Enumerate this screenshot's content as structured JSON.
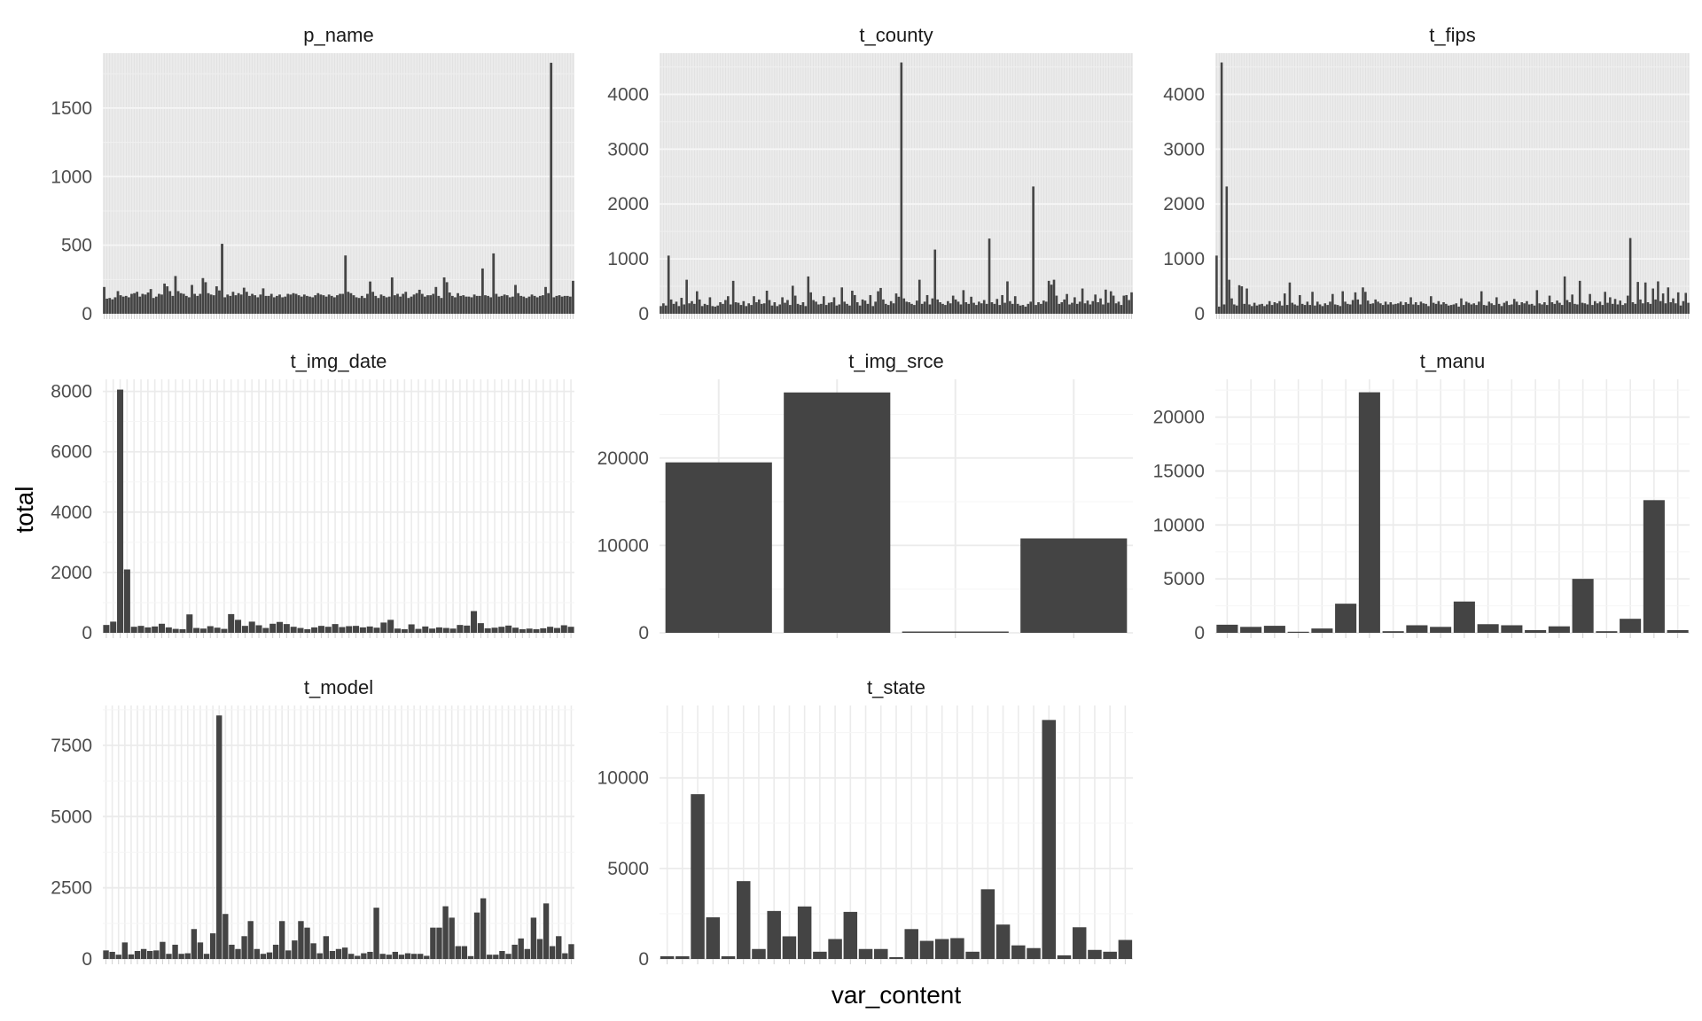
{
  "chart_data": {
    "type": "bar",
    "layout": "faceted",
    "xlabel": "var_content",
    "ylabel": "total",
    "colors": {
      "bar": "#444444",
      "panel": "#ebebeb",
      "grid_major": "#ebebeb",
      "grid_minor": "#f5f5f5"
    },
    "panels": [
      {
        "title": "p_name",
        "ylim": [
          0,
          1900
        ],
        "yticks": [
          0,
          500,
          1000,
          1500
        ],
        "grid": "dense",
        "values": [
          195,
          110,
          115,
          105,
          120,
          165,
          135,
          125,
          130,
          120,
          145,
          150,
          160,
          125,
          145,
          140,
          155,
          180,
          115,
          125,
          145,
          140,
          220,
          200,
          165,
          130,
          275,
          165,
          150,
          145,
          130,
          120,
          210,
          145,
          130,
          145,
          260,
          230,
          150,
          140,
          135,
          200,
          170,
          510,
          120,
          140,
          130,
          160,
          135,
          150,
          140,
          190,
          160,
          130,
          145,
          135,
          120,
          140,
          185,
          130,
          130,
          145,
          120,
          130,
          140,
          120,
          125,
          145,
          140,
          150,
          145,
          135,
          125,
          140,
          130,
          125,
          120,
          135,
          150,
          140,
          135,
          125,
          140,
          130,
          120,
          135,
          145,
          145,
          425,
          160,
          150,
          135,
          120,
          115,
          130,
          115,
          145,
          235,
          160,
          130,
          115,
          140,
          130,
          120,
          125,
          265,
          135,
          145,
          125,
          145,
          160,
          115,
          125,
          140,
          150,
          175,
          145,
          125,
          135,
          135,
          145,
          195,
          130,
          115,
          265,
          230,
          155,
          130,
          120,
          150,
          130,
          135,
          125,
          125,
          120,
          140,
          130,
          130,
          330,
          135,
          130,
          120,
          440,
          145,
          125,
          130,
          140,
          135,
          120,
          125,
          210,
          150,
          130,
          125,
          115,
          125,
          140,
          130,
          120,
          130,
          135,
          195,
          150,
          1830,
          120,
          130,
          135,
          125,
          130,
          130,
          125,
          240
        ]
      },
      {
        "title": "t_county",
        "ylim": [
          0,
          4750
        ],
        "yticks": [
          0,
          1000,
          2000,
          3000,
          4000
        ],
        "grid": "dense",
        "values": [
          140,
          190,
          150,
          1060,
          260,
          180,
          220,
          140,
          290,
          170,
          620,
          190,
          230,
          180,
          410,
          260,
          140,
          180,
          160,
          300,
          140,
          130,
          150,
          210,
          180,
          250,
          320,
          170,
          600,
          210,
          200,
          160,
          230,
          140,
          190,
          160,
          320,
          210,
          260,
          180,
          190,
          420,
          250,
          150,
          210,
          140,
          170,
          300,
          200,
          250,
          160,
          510,
          330,
          180,
          160,
          210,
          140,
          680,
          390,
          250,
          220,
          170,
          180,
          320,
          160,
          200,
          210,
          300,
          150,
          170,
          480,
          220,
          180,
          150,
          420,
          340,
          210,
          150,
          260,
          240,
          180,
          340,
          140,
          220,
          410,
          470,
          260,
          180,
          160,
          230,
          190,
          370,
          310,
          4580,
          280,
          220,
          210,
          180,
          160,
          240,
          620,
          180,
          220,
          340,
          170,
          280,
          1170,
          260,
          210,
          180,
          160,
          230,
          190,
          330,
          260,
          220,
          170,
          430,
          210,
          180,
          310,
          200,
          160,
          220,
          190,
          250,
          180,
          1370,
          210,
          180,
          270,
          160,
          340,
          200,
          590,
          230,
          180,
          320,
          180,
          150,
          160,
          130,
          180,
          220,
          2320,
          160,
          210,
          180,
          240,
          220,
          600,
          530,
          620,
          330,
          180,
          210,
          260,
          360,
          170,
          200,
          300,
          180,
          220,
          460,
          190,
          240,
          170,
          230,
          350,
          210,
          280,
          170,
          440,
          200,
          410,
          330,
          190,
          220,
          160,
          330,
          340,
          250,
          390
        ]
      },
      {
        "title": "t_fips",
        "ylim": [
          0,
          4750
        ],
        "yticks": [
          0,
          1000,
          2000,
          3000,
          4000
        ],
        "grid": "dense",
        "values": [
          1060,
          130,
          4580,
          170,
          2320,
          620,
          280,
          170,
          150,
          520,
          500,
          180,
          460,
          170,
          140,
          200,
          150,
          170,
          180,
          140,
          170,
          230,
          160,
          210,
          190,
          230,
          150,
          370,
          160,
          570,
          200,
          170,
          150,
          340,
          180,
          160,
          220,
          160,
          400,
          150,
          220,
          170,
          140,
          190,
          160,
          220,
          360,
          170,
          160,
          140,
          410,
          220,
          180,
          170,
          250,
          390,
          260,
          170,
          480,
          400,
          240,
          180,
          190,
          260,
          220,
          190,
          160,
          220,
          170,
          210,
          170,
          180,
          190,
          220,
          160,
          210,
          180,
          300,
          170,
          210,
          160,
          220,
          190,
          180,
          140,
          320,
          200,
          180,
          230,
          170,
          210,
          180,
          150,
          160,
          170,
          190,
          130,
          280,
          160,
          220,
          200,
          170,
          190,
          160,
          220,
          410,
          160,
          150,
          220,
          190,
          160,
          300,
          180,
          140,
          200,
          230,
          160,
          170,
          270,
          220,
          160,
          210,
          190,
          230,
          170,
          180,
          150,
          430,
          190,
          170,
          210,
          160,
          330,
          210,
          180,
          240,
          200,
          160,
          680,
          250,
          210,
          350,
          180,
          170,
          600,
          200,
          190,
          170,
          360,
          160,
          230,
          190,
          220,
          160,
          400,
          200,
          300,
          180,
          270,
          170,
          240,
          160,
          190,
          330,
          1380,
          210,
          180,
          580,
          260,
          190,
          570,
          210,
          180,
          460,
          260,
          590,
          230,
          370,
          190,
          480,
          210,
          280,
          190,
          390,
          150,
          230,
          380,
          200
        ]
      },
      {
        "title": "t_img_date",
        "ylim": [
          0,
          8400
        ],
        "yticks": [
          0,
          2000,
          4000,
          6000,
          8000
        ],
        "grid": "medium",
        "values": [
          260,
          370,
          8060,
          2100,
          200,
          230,
          180,
          210,
          300,
          180,
          130,
          120,
          610,
          160,
          140,
          220,
          170,
          130,
          620,
          430,
          230,
          370,
          250,
          160,
          300,
          360,
          290,
          200,
          160,
          120,
          180,
          230,
          200,
          290,
          190,
          220,
          230,
          180,
          210,
          170,
          340,
          430,
          140,
          120,
          280,
          130,
          210,
          140,
          180,
          160,
          140,
          260,
          240,
          720,
          320,
          150,
          170,
          200,
          240,
          170,
          120,
          140,
          120,
          150,
          200,
          160,
          250,
          200
        ]
      },
      {
        "title": "t_img_srce",
        "ylim": [
          0,
          29000
        ],
        "yticks": [
          0,
          10000,
          20000
        ],
        "grid": "sparse",
        "values": [
          19500,
          27500,
          150,
          10800
        ]
      },
      {
        "title": "t_manu",
        "ylim": [
          0,
          23500
        ],
        "yticks": [
          0,
          5000,
          10000,
          15000,
          20000
        ],
        "grid": "medium",
        "values": [
          750,
          550,
          650,
          100,
          400,
          2700,
          22300,
          150,
          700,
          550,
          2900,
          800,
          700,
          250,
          600,
          5000,
          150,
          1300,
          12300,
          250
        ]
      },
      {
        "title": "t_model",
        "ylim": [
          0,
          8900
        ],
        "yticks": [
          0,
          2500,
          5000,
          7500
        ],
        "grid": "medium",
        "values": [
          300,
          250,
          150,
          580,
          160,
          280,
          350,
          280,
          300,
          600,
          180,
          500,
          180,
          200,
          1050,
          580,
          180,
          900,
          8550,
          1580,
          500,
          350,
          800,
          1330,
          350,
          180,
          230,
          500,
          1330,
          300,
          650,
          1330,
          1100,
          550,
          200,
          800,
          280,
          350,
          400,
          180,
          110,
          200,
          250,
          1800,
          180,
          150,
          250,
          150,
          200,
          180,
          180,
          110,
          1100,
          1100,
          1850,
          1450,
          450,
          450,
          100,
          1630,
          2130,
          150,
          150,
          280,
          180,
          500,
          720,
          350,
          1450,
          700,
          1950,
          450,
          800,
          200,
          520
        ]
      },
      {
        "title": "t_state",
        "ylim": [
          0,
          14000
        ],
        "yticks": [
          0,
          5000,
          10000
        ],
        "grid": "medium",
        "values": [
          150,
          150,
          9100,
          2300,
          150,
          4300,
          550,
          2650,
          1250,
          2900,
          400,
          1100,
          2600,
          550,
          550,
          100,
          1650,
          1000,
          1100,
          1150,
          400,
          3850,
          1900,
          750,
          600,
          13200,
          200,
          1750,
          500,
          400,
          1050
        ]
      }
    ]
  }
}
